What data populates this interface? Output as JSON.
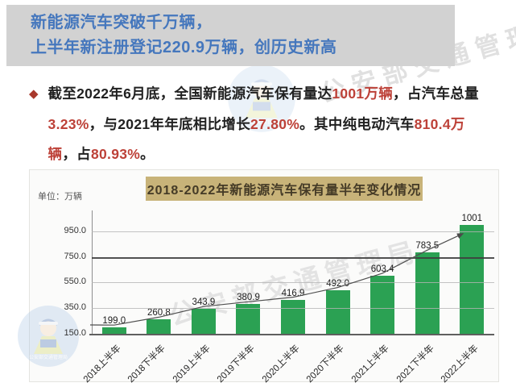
{
  "header": {
    "line1": "新能源汽车突破千万辆，",
    "line2": "上半年新注册登记220.9万辆，创历史新高"
  },
  "bullet": {
    "marker": "◆",
    "segments": [
      {
        "text": "截至2022年6月底，全国新能源汽车保有量达",
        "em": false
      },
      {
        "text": "1001万辆",
        "em": true
      },
      {
        "text": "，占汽车总量",
        "em": false
      },
      {
        "text": "3.23%",
        "em": true
      },
      {
        "text": "，与2021年年底相比增长",
        "em": false
      },
      {
        "text": "27.80%",
        "em": true
      },
      {
        "text": "。其中纯电动汽车",
        "em": false
      },
      {
        "text": "810.4万辆",
        "em": true
      },
      {
        "text": "，占",
        "em": false
      },
      {
        "text": "80.93%",
        "em": true
      },
      {
        "text": "。",
        "em": false
      }
    ]
  },
  "chart_data": {
    "type": "bar",
    "title": "2018-2022年新能源汽车保有量半年变化情况",
    "unit_label": "单位：万辆",
    "categories": [
      "2018上半年",
      "2018下半年",
      "2019上半年",
      "2019下半年",
      "2020上半年",
      "2020下半年",
      "2021上半年",
      "2021下半年",
      "2022上半年"
    ],
    "values": [
      199.0,
      260.8,
      343.9,
      380.9,
      416.9,
      492.0,
      603.4,
      783.5,
      1001
    ],
    "value_labels": [
      "199.0",
      "260.8",
      "343.9",
      "380.9",
      "416.9",
      "492.0",
      "603.4",
      "783.5",
      "1001"
    ],
    "yticks": [
      150.0,
      350.0,
      550.0,
      750.0,
      950.0
    ],
    "ytick_labels": [
      "150.0",
      "350.0",
      "550.0",
      "750.0",
      "950.0"
    ],
    "ylim": [
      150,
      1080
    ],
    "emphasized_gridline": 750,
    "grid": true,
    "legend": null,
    "trend_arrow": true,
    "bar_color": "#2ba153"
  },
  "watermark": {
    "text": "公安部交通管理局"
  },
  "colors": {
    "header_bg": "#d2d2d2",
    "header_text": "#4577bd",
    "accent_red": "#bd4138",
    "title_box_bg": "#c8b379",
    "bar_green": "#2ba153"
  }
}
